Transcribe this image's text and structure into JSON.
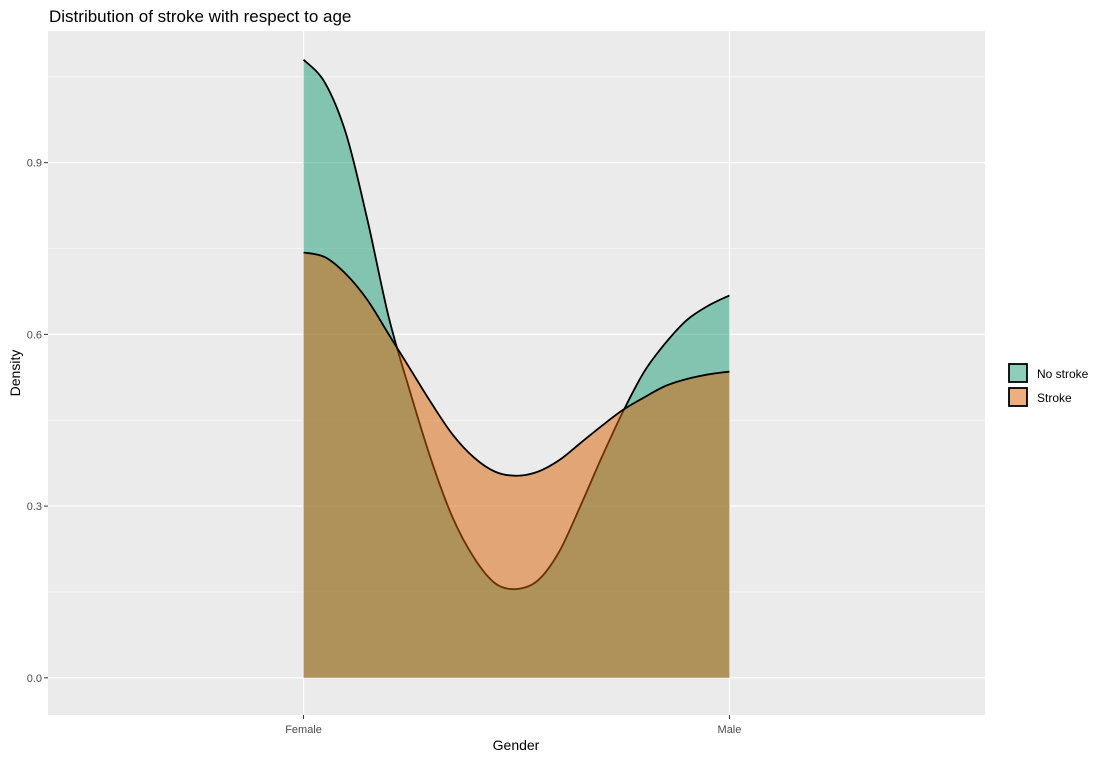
{
  "chart_data": {
    "type": "area",
    "title": "Distribution of stroke with respect to age",
    "xlabel": "Gender",
    "ylabel": "Density",
    "categories": [
      "Female",
      "Male"
    ],
    "x_range": [
      -0.6,
      1.6
    ],
    "ylim": [
      -0.065,
      1.13
    ],
    "y_ticks": [
      0.0,
      0.3,
      0.6,
      0.9
    ],
    "y_tick_labels": [
      "0.0",
      "0.3",
      "0.6",
      "0.9"
    ],
    "grid": true,
    "legend_position": "right",
    "series": [
      {
        "name": "No stroke",
        "color": "#1b9e77",
        "opacity": 0.5,
        "x": [
          0.0,
          0.05,
          0.1,
          0.15,
          0.2,
          0.25,
          0.3,
          0.35,
          0.4,
          0.45,
          0.5,
          0.55,
          0.6,
          0.65,
          0.7,
          0.75,
          0.8,
          0.85,
          0.9,
          0.95,
          1.0
        ],
        "y": [
          1.08,
          1.04,
          0.95,
          0.8,
          0.63,
          0.5,
          0.38,
          0.28,
          0.21,
          0.165,
          0.155,
          0.17,
          0.22,
          0.3,
          0.385,
          0.465,
          0.535,
          0.585,
          0.625,
          0.65,
          0.668
        ]
      },
      {
        "name": "Stroke",
        "color": "#d95f02",
        "opacity": 0.5,
        "x": [
          0.0,
          0.05,
          0.1,
          0.15,
          0.2,
          0.25,
          0.3,
          0.35,
          0.4,
          0.45,
          0.5,
          0.55,
          0.6,
          0.65,
          0.7,
          0.75,
          0.8,
          0.85,
          0.9,
          0.95,
          1.0
        ],
        "y": [
          0.743,
          0.735,
          0.705,
          0.66,
          0.6,
          0.54,
          0.48,
          0.425,
          0.385,
          0.36,
          0.353,
          0.36,
          0.38,
          0.41,
          0.44,
          0.468,
          0.49,
          0.51,
          0.522,
          0.53,
          0.535
        ]
      }
    ]
  }
}
